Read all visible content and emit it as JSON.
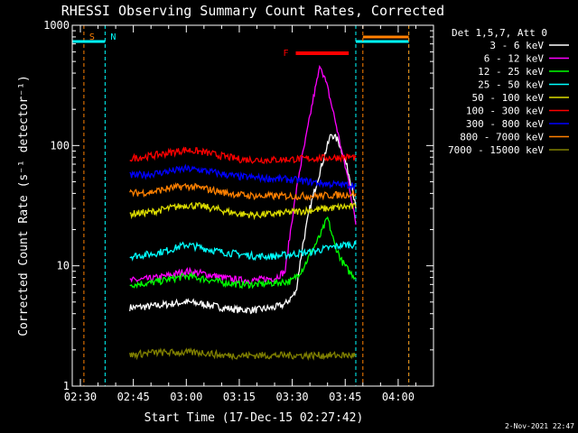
{
  "chart_data": {
    "type": "line",
    "title": "RHESSI Observing Summary Count Rates, Corrected",
    "xlabel": "Start Time (17-Dec-15 02:27:42)",
    "ylabel": "Corrected Count Rate (s⁻¹ detector⁻¹)",
    "y_scale": "log",
    "ylim": [
      1,
      1000
    ],
    "y_ticks": [
      {
        "value": 1,
        "label": "1"
      },
      {
        "value": 10,
        "label": "10"
      },
      {
        "value": 100,
        "label": "100"
      },
      {
        "value": 1000,
        "label": "1000"
      }
    ],
    "xlim": [
      "02:27:42",
      "04:10:00"
    ],
    "x_ticks": [
      {
        "value": "02:30",
        "label": "02:30"
      },
      {
        "value": "02:45",
        "label": "02:45"
      },
      {
        "value": "03:00",
        "label": "03:00"
      },
      {
        "value": "03:15",
        "label": "03:15"
      },
      {
        "value": "03:30",
        "label": "03:30"
      },
      {
        "value": "03:45",
        "label": "03:45"
      },
      {
        "value": "04:00",
        "label": "04:00"
      }
    ],
    "legend_title": "Det 1,5,7, Att 0",
    "legend_position": "right",
    "series": [
      {
        "name": "3 - 6 keV",
        "color": "#ffffff",
        "points": [
          [
            "02:44",
            4.5
          ],
          [
            "02:50",
            4.6
          ],
          [
            "02:55",
            4.8
          ],
          [
            "03:00",
            5.0
          ],
          [
            "03:05",
            4.8
          ],
          [
            "03:10",
            4.5
          ],
          [
            "03:15",
            4.3
          ],
          [
            "03:20",
            4.3
          ],
          [
            "03:25",
            4.5
          ],
          [
            "03:28",
            4.8
          ],
          [
            "03:31",
            6
          ],
          [
            "03:33",
            15
          ],
          [
            "03:35",
            30
          ],
          [
            "03:37",
            50
          ],
          [
            "03:39",
            80
          ],
          [
            "03:41",
            125
          ],
          [
            "03:43",
            110
          ],
          [
            "03:45",
            75
          ],
          [
            "03:47",
            45
          ],
          [
            "03:48",
            30
          ]
        ]
      },
      {
        "name": "6 - 12 keV",
        "color": "#ff00ff",
        "points": [
          [
            "02:44",
            7.5
          ],
          [
            "02:50",
            7.8
          ],
          [
            "02:55",
            8.3
          ],
          [
            "03:00",
            9
          ],
          [
            "03:05",
            8.6
          ],
          [
            "03:10",
            8
          ],
          [
            "03:15",
            7.6
          ],
          [
            "03:20",
            7.6
          ],
          [
            "03:25",
            7.9
          ],
          [
            "03:28",
            9
          ],
          [
            "03:30",
            25
          ],
          [
            "03:32",
            60
          ],
          [
            "03:34",
            120
          ],
          [
            "03:36",
            250
          ],
          [
            "03:38",
            470
          ],
          [
            "03:40",
            300
          ],
          [
            "03:42",
            170
          ],
          [
            "03:44",
            90
          ],
          [
            "03:46",
            50
          ],
          [
            "03:48",
            22
          ]
        ]
      },
      {
        "name": "12 - 25 keV",
        "color": "#00ff00",
        "points": [
          [
            "02:44",
            7
          ],
          [
            "02:50",
            7.2
          ],
          [
            "02:55",
            7.7
          ],
          [
            "03:00",
            8.2
          ],
          [
            "03:05",
            7.8
          ],
          [
            "03:10",
            7.3
          ],
          [
            "03:15",
            7
          ],
          [
            "03:20",
            7
          ],
          [
            "03:25",
            7.2
          ],
          [
            "03:30",
            7.5
          ],
          [
            "03:33",
            9.5
          ],
          [
            "03:36",
            14
          ],
          [
            "03:38",
            18
          ],
          [
            "03:40",
            25
          ],
          [
            "03:42",
            15
          ],
          [
            "03:44",
            11
          ],
          [
            "03:46",
            9
          ],
          [
            "03:48",
            8
          ]
        ]
      },
      {
        "name": "25 - 50 keV",
        "color": "#00ffff",
        "points": [
          [
            "02:44",
            12
          ],
          [
            "02:50",
            12.5
          ],
          [
            "02:55",
            13.5
          ],
          [
            "03:00",
            15
          ],
          [
            "03:05",
            14
          ],
          [
            "03:10",
            13
          ],
          [
            "03:15",
            12.5
          ],
          [
            "03:20",
            12
          ],
          [
            "03:25",
            12
          ],
          [
            "03:30",
            12.5
          ],
          [
            "03:35",
            13
          ],
          [
            "03:40",
            14
          ],
          [
            "03:45",
            15
          ],
          [
            "03:48",
            15
          ]
        ]
      },
      {
        "name": "50 - 100 keV",
        "color": "#dddd00",
        "points": [
          [
            "02:44",
            27
          ],
          [
            "02:50",
            28
          ],
          [
            "02:55",
            30
          ],
          [
            "03:00",
            32
          ],
          [
            "03:05",
            31
          ],
          [
            "03:10",
            29
          ],
          [
            "03:15",
            27
          ],
          [
            "03:20",
            26.5
          ],
          [
            "03:25",
            27
          ],
          [
            "03:30",
            28
          ],
          [
            "03:35",
            29
          ],
          [
            "03:40",
            30
          ],
          [
            "03:45",
            31
          ],
          [
            "03:48",
            31
          ]
        ]
      },
      {
        "name": "100 - 300 keV",
        "color": "#ff0000",
        "points": [
          [
            "02:44",
            78
          ],
          [
            "02:50",
            82
          ],
          [
            "02:55",
            87
          ],
          [
            "03:00",
            92
          ],
          [
            "03:05",
            88
          ],
          [
            "03:10",
            82
          ],
          [
            "03:15",
            77
          ],
          [
            "03:20",
            76
          ],
          [
            "03:25",
            76
          ],
          [
            "03:30",
            77
          ],
          [
            "03:35",
            78
          ],
          [
            "03:40",
            79
          ],
          [
            "03:45",
            80
          ],
          [
            "03:48",
            80
          ]
        ]
      },
      {
        "name": "300 - 800 keV",
        "color": "#0000ff",
        "points": [
          [
            "02:44",
            56
          ],
          [
            "02:50",
            58
          ],
          [
            "02:55",
            61
          ],
          [
            "03:00",
            64
          ],
          [
            "03:05",
            62
          ],
          [
            "03:10",
            58
          ],
          [
            "03:15",
            55
          ],
          [
            "03:20",
            54
          ],
          [
            "03:25",
            53
          ],
          [
            "03:30",
            52
          ],
          [
            "03:35",
            50
          ],
          [
            "03:40",
            48
          ],
          [
            "03:45",
            47
          ],
          [
            "03:48",
            47
          ]
        ]
      },
      {
        "name": "800 - 7000 keV",
        "color": "#ff8000",
        "points": [
          [
            "02:44",
            40
          ],
          [
            "02:50",
            41
          ],
          [
            "02:55",
            44
          ],
          [
            "03:00",
            46
          ],
          [
            "03:05",
            44
          ],
          [
            "03:10",
            41
          ],
          [
            "03:15",
            39
          ],
          [
            "03:20",
            38
          ],
          [
            "03:25",
            38
          ],
          [
            "03:30",
            38
          ],
          [
            "03:35",
            38
          ],
          [
            "03:40",
            38.5
          ],
          [
            "03:45",
            39
          ],
          [
            "03:48",
            40
          ]
        ]
      },
      {
        "name": "7000 - 15000 keV",
        "color": "#808000",
        "points": [
          [
            "02:44",
            1.8
          ],
          [
            "02:50",
            1.9
          ],
          [
            "02:55",
            1.9
          ],
          [
            "03:00",
            1.9
          ],
          [
            "03:05",
            1.9
          ],
          [
            "03:10",
            1.8
          ],
          [
            "03:15",
            1.8
          ],
          [
            "03:20",
            1.8
          ],
          [
            "03:25",
            1.8
          ],
          [
            "03:30",
            1.8
          ],
          [
            "03:35",
            1.8
          ],
          [
            "03:40",
            1.8
          ],
          [
            "03:45",
            1.8
          ],
          [
            "03:48",
            1.8
          ]
        ]
      }
    ],
    "annotations": [
      {
        "label": "S",
        "color": "#ff8000",
        "time": "02:31"
      },
      {
        "label": "N",
        "color": "#00ffff",
        "time": "02:37"
      },
      {
        "label": "F",
        "color": "#ff0000",
        "start": "03:31",
        "end": "03:46"
      }
    ],
    "intervals": [
      {
        "kind": "saa",
        "color": "#ff8000",
        "start": "02:31",
        "end": "02:31",
        "band": "saa"
      },
      {
        "kind": "night",
        "color": "#00ffff",
        "start": "02:27:42",
        "end": "02:37",
        "band": "night"
      },
      {
        "kind": "night",
        "color": "#00ffff",
        "start": "03:48",
        "end": "04:03",
        "band": "night"
      },
      {
        "kind": "saa",
        "color": "#ff8000",
        "start": "03:50",
        "end": "04:03",
        "band": "saa"
      }
    ],
    "footer_date": "2-Nov-2021 22:47"
  }
}
